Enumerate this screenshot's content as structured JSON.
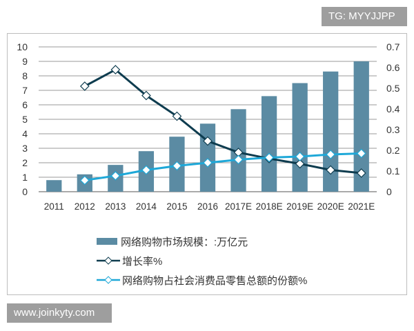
{
  "watermark_top": "TG: MYYJJPP",
  "watermark_bottom": "www.joinkyty.com",
  "colors": {
    "bar": "#5b8ba3",
    "growth": "#0e3c4f",
    "share": "#1ea8d8"
  },
  "chart_data": {
    "type": "bar",
    "categories": [
      "2011",
      "2012",
      "2013",
      "2014",
      "2015",
      "2016",
      "2017E",
      "2018E",
      "2019E",
      "2020E",
      "2021E"
    ],
    "series": [
      {
        "name": "网络购物市场规模：:万亿元",
        "type": "bar",
        "axis": "left",
        "values": [
          0.8,
          1.2,
          1.85,
          2.8,
          3.8,
          4.7,
          5.7,
          6.6,
          7.5,
          8.3,
          9.0
        ]
      },
      {
        "name": "增长率%",
        "type": "line",
        "axis": "right",
        "values": [
          null,
          0.51,
          0.59,
          0.465,
          0.365,
          0.245,
          0.19,
          0.16,
          0.135,
          0.105,
          0.09
        ]
      },
      {
        "name": "网络购物占社会消费品零售总额的份额%",
        "type": "line",
        "axis": "right",
        "values": [
          null,
          0.055,
          0.077,
          0.105,
          0.125,
          0.14,
          0.155,
          0.165,
          0.17,
          0.18,
          0.185
        ]
      }
    ],
    "y_left": {
      "range": [
        0,
        10
      ],
      "ticks": [
        "0",
        "1",
        "2",
        "3",
        "4",
        "5",
        "6",
        "7",
        "8",
        "9",
        "10"
      ]
    },
    "y_right": {
      "range": [
        0,
        0.7
      ],
      "ticks": [
        "0",
        "0.1",
        "0.2",
        "0.3",
        "0.4",
        "0.5",
        "0.6",
        "0.7"
      ]
    },
    "grid": true,
    "legend_position": "bottom"
  }
}
